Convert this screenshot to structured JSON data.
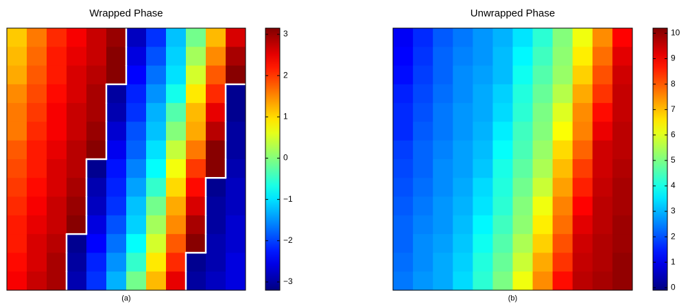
{
  "chart_data": [
    {
      "type": "heatmap",
      "title": "Wrapped Phase",
      "xlabel": "(a)",
      "clim": [
        -3.2,
        3.15
      ],
      "cticks": [
        {
          "value": -3,
          "label": "−3"
        },
        {
          "value": -2,
          "label": "−2"
        },
        {
          "value": -1,
          "label": "−1"
        },
        0,
        1,
        2,
        3
      ],
      "z": [
        [
          1.1,
          1.6,
          2.1,
          2.4,
          2.7,
          3.0,
          -2.8,
          -2.1,
          -1.2,
          -0.1,
          1.2,
          2.6
        ],
        [
          1.2,
          1.7,
          2.2,
          2.5,
          2.7,
          3.1,
          -2.6,
          -1.9,
          -1.1,
          0.2,
          1.5,
          2.9
        ],
        [
          1.3,
          1.8,
          2.2,
          2.6,
          2.8,
          3.1,
          -2.4,
          -1.7,
          -1.0,
          0.5,
          1.8,
          3.1
        ],
        [
          1.5,
          1.9,
          2.3,
          2.6,
          2.9,
          -3.0,
          -2.2,
          -1.5,
          -0.7,
          0.9,
          2.1,
          -3.1
        ],
        [
          1.6,
          2.0,
          2.4,
          2.7,
          2.9,
          -2.9,
          -2.1,
          -1.3,
          -0.3,
          1.2,
          2.5,
          -3.1
        ],
        [
          1.6,
          2.1,
          2.4,
          2.7,
          3.0,
          -2.7,
          -1.9,
          -1.2,
          0.0,
          1.3,
          2.8,
          -3.0
        ],
        [
          1.8,
          2.2,
          2.5,
          2.8,
          3.1,
          -2.5,
          -1.8,
          -1.0,
          0.4,
          1.6,
          3.1,
          -3.0
        ],
        [
          1.9,
          2.2,
          2.6,
          2.8,
          -3.1,
          -2.3,
          -1.6,
          -0.8,
          0.7,
          2.0,
          3.1,
          -2.9
        ],
        [
          2.0,
          2.3,
          2.6,
          2.9,
          -2.9,
          -2.2,
          -1.4,
          -0.5,
          1.0,
          2.3,
          -3.1,
          -2.8
        ],
        [
          2.1,
          2.4,
          2.7,
          3.0,
          -2.8,
          -2.1,
          -1.2,
          -0.1,
          1.3,
          2.6,
          -3.0,
          -2.8
        ],
        [
          2.2,
          2.5,
          2.7,
          3.1,
          -2.6,
          -1.9,
          -1.1,
          0.2,
          1.5,
          2.9,
          -3.0,
          -2.7
        ],
        [
          2.2,
          2.6,
          2.8,
          -3.1,
          -2.4,
          -1.7,
          -0.8,
          0.5,
          1.8,
          3.1,
          -2.9,
          -2.7
        ],
        [
          2.3,
          2.6,
          2.9,
          -3.0,
          -2.2,
          -1.5,
          -0.5,
          0.9,
          2.1,
          -3.1,
          -2.9,
          -2.6
        ],
        [
          2.4,
          2.7,
          2.9,
          -2.9,
          -2.1,
          -1.3,
          -0.1,
          1.2,
          2.5,
          -3.0,
          -2.8,
          -2.6
        ]
      ]
    },
    {
      "type": "heatmap",
      "title": "Unwrapped Phase",
      "xlabel": "(b)",
      "clim": [
        -0.1,
        10.2
      ],
      "cticks": [
        0,
        1,
        2,
        3,
        4,
        5,
        6,
        7,
        8,
        9,
        10
      ],
      "z": [
        [
          1.1,
          1.6,
          2.1,
          2.4,
          2.7,
          3.0,
          3.5,
          4.2,
          5.1,
          6.2,
          7.5,
          8.9
        ],
        [
          1.2,
          1.7,
          2.2,
          2.5,
          2.7,
          3.1,
          3.7,
          4.4,
          5.2,
          6.5,
          7.8,
          9.2
        ],
        [
          1.3,
          1.8,
          2.2,
          2.6,
          2.8,
          3.1,
          3.9,
          4.6,
          5.3,
          6.8,
          8.1,
          9.4
        ],
        [
          1.5,
          1.9,
          2.3,
          2.6,
          2.9,
          3.3,
          4.1,
          4.8,
          5.6,
          7.2,
          8.4,
          9.5
        ],
        [
          1.6,
          2.0,
          2.4,
          2.7,
          2.9,
          3.4,
          4.2,
          5.0,
          6.0,
          7.5,
          8.8,
          9.5
        ],
        [
          1.6,
          2.1,
          2.4,
          2.7,
          3.0,
          3.6,
          4.4,
          5.1,
          6.3,
          7.6,
          9.1,
          9.6
        ],
        [
          1.8,
          2.2,
          2.5,
          2.8,
          3.1,
          3.8,
          4.5,
          5.3,
          6.7,
          7.9,
          9.4,
          9.6
        ],
        [
          1.9,
          2.2,
          2.6,
          2.8,
          3.2,
          4.0,
          4.7,
          5.5,
          7.0,
          8.3,
          9.4,
          9.7
        ],
        [
          2.0,
          2.3,
          2.6,
          2.9,
          3.4,
          4.1,
          4.9,
          5.8,
          7.3,
          8.6,
          9.5,
          9.8
        ],
        [
          2.1,
          2.4,
          2.7,
          3.0,
          3.5,
          4.2,
          5.1,
          6.2,
          7.6,
          8.9,
          9.6,
          9.8
        ],
        [
          2.2,
          2.5,
          2.7,
          3.1,
          3.7,
          4.4,
          5.2,
          6.5,
          7.8,
          9.2,
          9.6,
          9.9
        ],
        [
          2.2,
          2.6,
          2.8,
          3.2,
          3.9,
          4.6,
          5.5,
          6.8,
          8.1,
          9.4,
          9.7,
          9.9
        ],
        [
          2.3,
          2.6,
          2.9,
          3.3,
          4.1,
          4.8,
          5.8,
          7.2,
          8.4,
          9.5,
          9.7,
          10.0
        ],
        [
          2.4,
          2.7,
          2.9,
          3.4,
          4.2,
          5.0,
          6.2,
          7.5,
          8.8,
          9.6,
          9.8,
          10.0
        ]
      ]
    }
  ]
}
